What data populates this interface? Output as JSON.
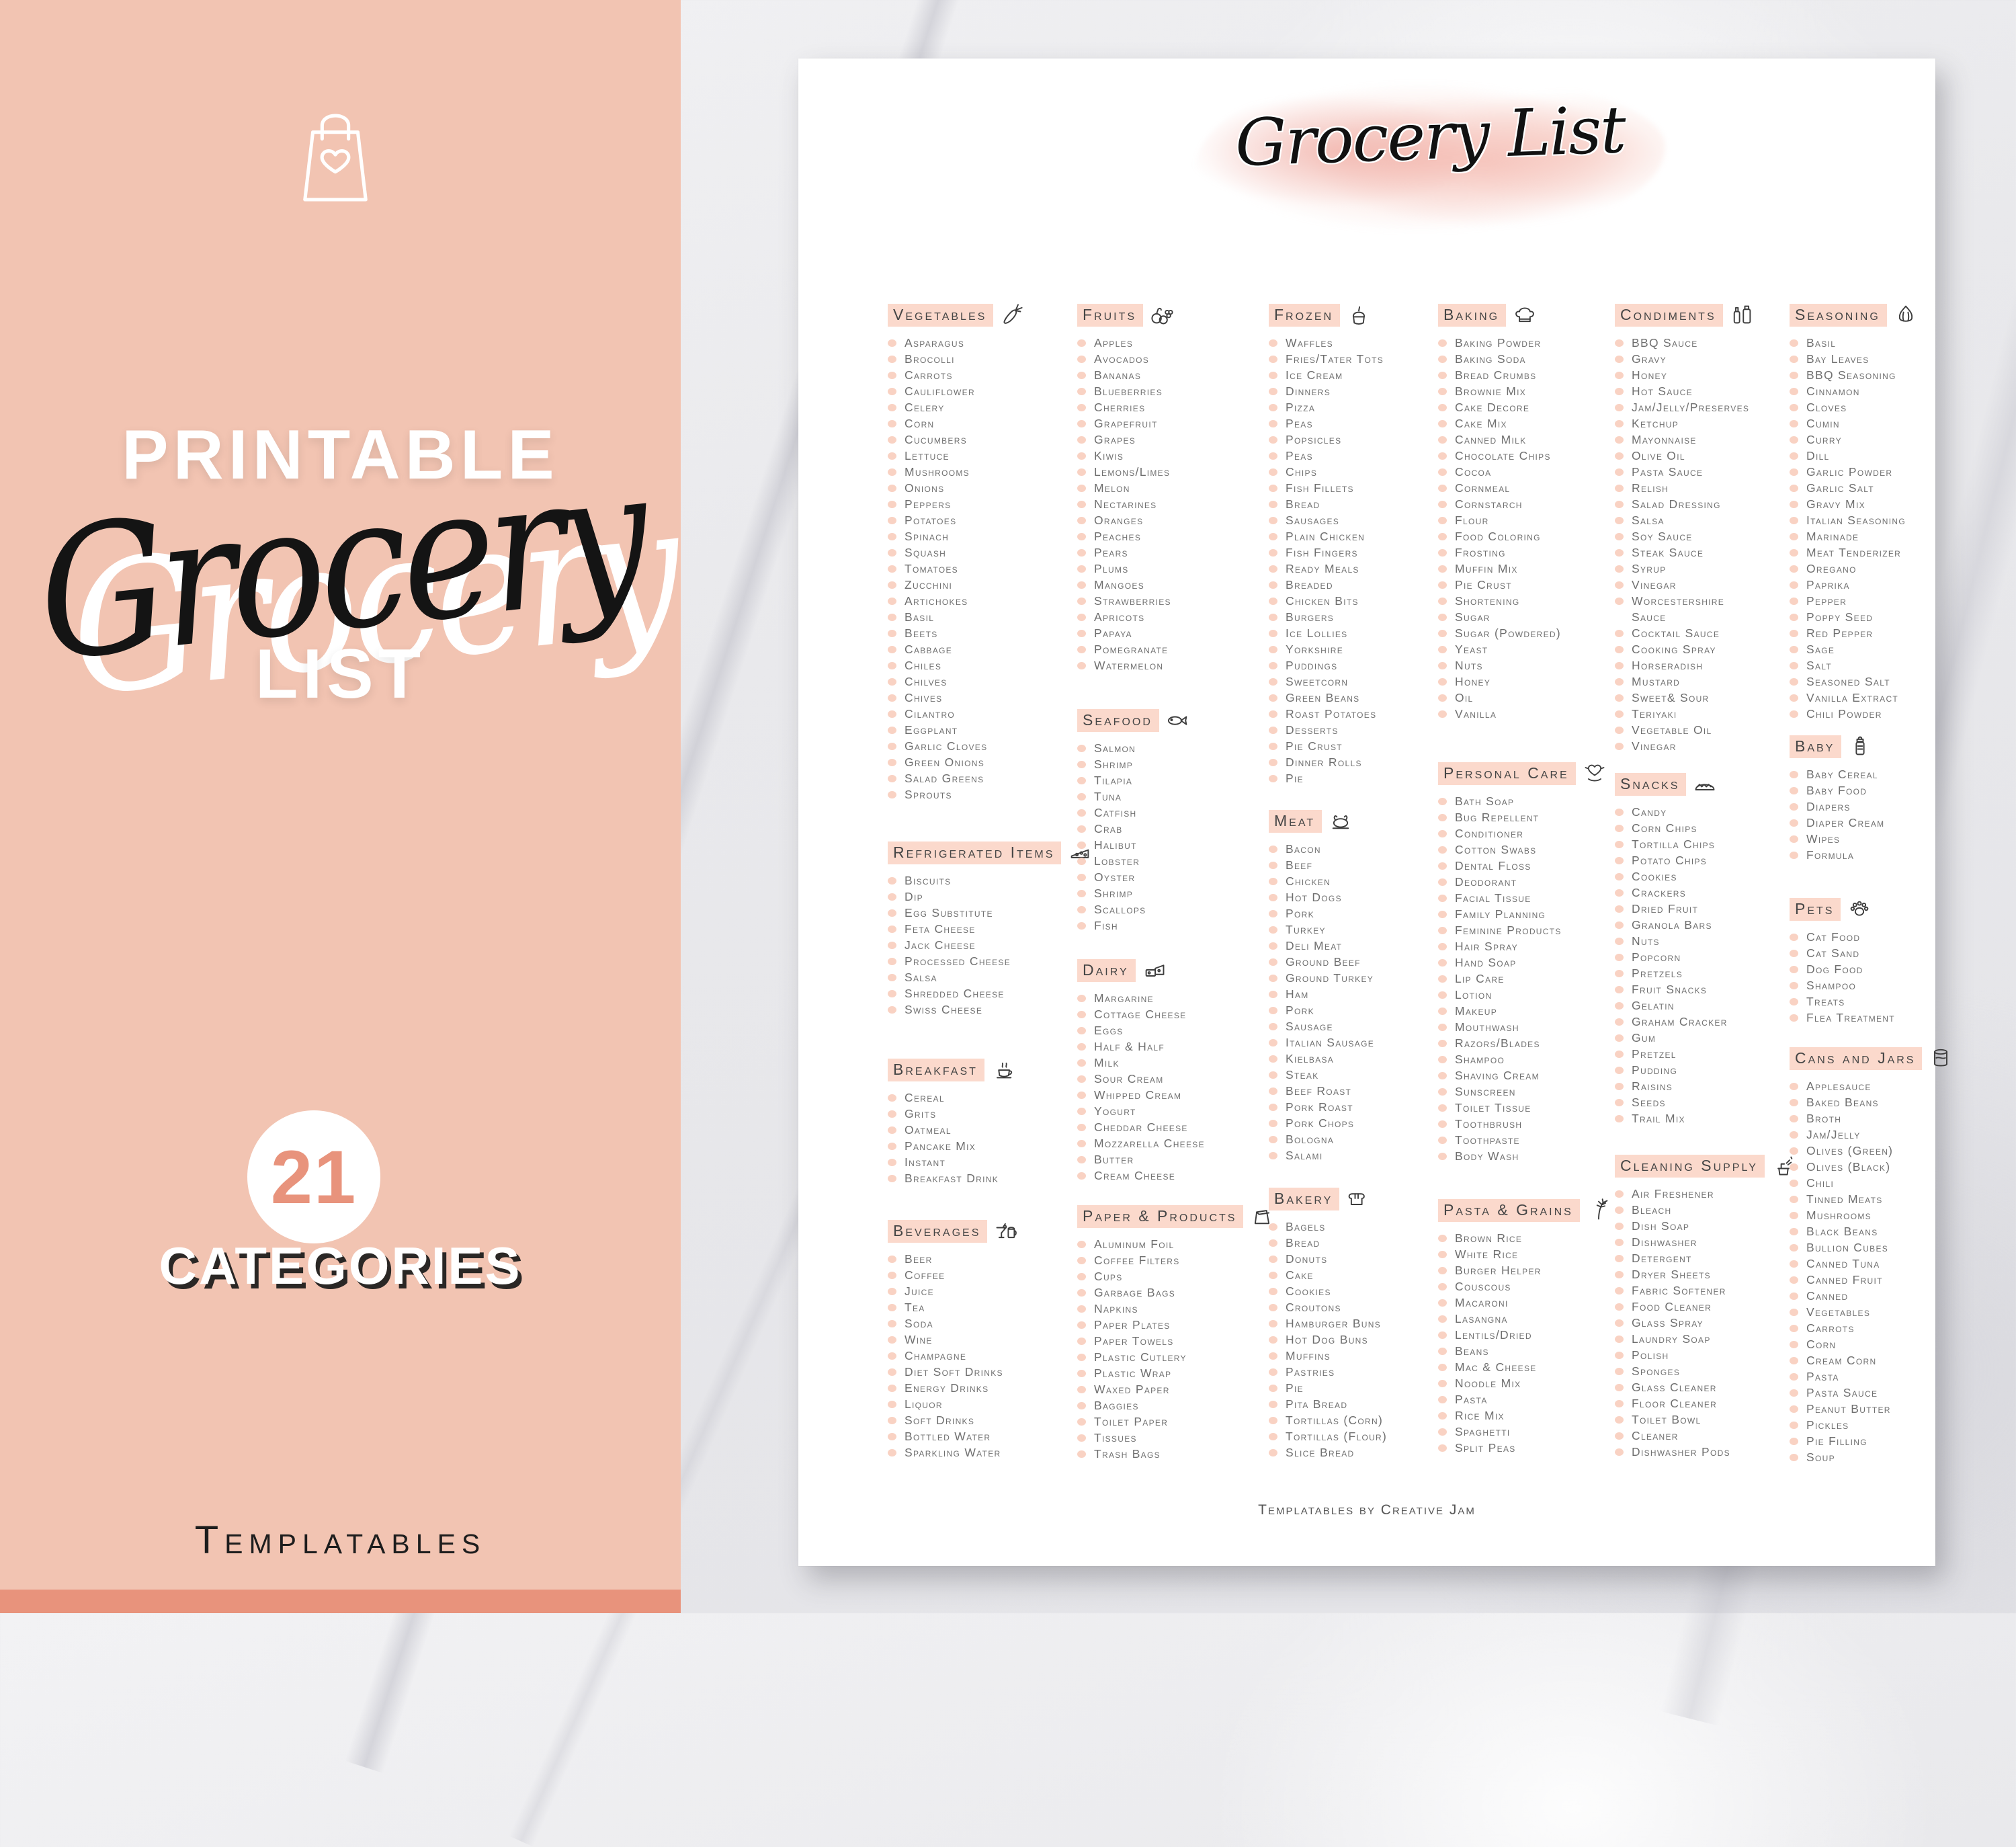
{
  "left_panel": {
    "bag_icon": "shopping-bag-heart-icon",
    "title_top": "PRINTABLE",
    "script_word": "Grocery",
    "title_bottom": "LIST",
    "badge": {
      "number": "21",
      "label": "CATEGORIES"
    },
    "brand": "Templatables"
  },
  "colors": {
    "panel_pink": "#f2c4b2",
    "accent_salmon": "#e8937c",
    "band_pink": "#fbd9cc",
    "dot_pink": "#f9d2c3",
    "header_text": "#454545",
    "item_text": "#6f6f6f"
  },
  "document": {
    "title": "Grocery List",
    "footer": "Templatables by Creative Jam",
    "columns": [
      [
        {
          "name": "Vegetables",
          "icon": "carrot-icon",
          "items": [
            "Asparagus",
            "Brocolli",
            "Carrots",
            "Cauliflower",
            "Celery",
            "Corn",
            "Cucumbers",
            "Lettuce",
            "Mushrooms",
            "Onions",
            "Peppers",
            "Potatoes",
            "Spinach",
            "Squash",
            "Tomatoes",
            "Zucchini",
            "Artichokes",
            "Basil",
            "Beets",
            "Cabbage",
            "Chiles",
            "Chilves",
            "Chives",
            "Cilantro",
            "Eggplant",
            "Garlic Cloves",
            "Green Onions",
            "Salad Greens",
            "Sprouts"
          ]
        },
        {
          "name": "Refrigerated Items",
          "icon": "cheese-icon",
          "items": [
            "Biscuits",
            "Dip",
            "Egg Substitute",
            "Feta Cheese",
            "Jack Cheese",
            "Processed Cheese",
            "Salsa",
            "Shredded Cheese",
            "Swiss Cheese"
          ]
        },
        {
          "name": "Breakfast",
          "icon": "coffee-cup-icon",
          "items": [
            "Cereal",
            "Grits",
            "Oatmeal",
            "Pancake Mix",
            "Instant",
            "Breakfast Drink"
          ]
        },
        {
          "name": "Beverages",
          "icon": "drinks-icon",
          "items": [
            "Beer",
            "Coffee",
            "Juice",
            "Tea",
            "Soda",
            "Wine",
            "Champagne",
            "Diet Soft Drinks",
            "Energy Drinks",
            "Liquor",
            "Soft Drinks",
            "Bottled Water",
            "Sparkling Water"
          ]
        }
      ],
      [
        {
          "name": "Fruits",
          "icon": "fruit-icon",
          "items": [
            "Apples",
            "Avocados",
            "Bananas",
            "Blueberries",
            "Cherries",
            "Grapefruit",
            "Grapes",
            "Kiwis",
            "Lemons/Limes",
            "Melon",
            "Nectarines",
            "Oranges",
            "Peaches",
            "Pears",
            "Plums",
            "Mangoes",
            "Strawberries",
            "Apricots",
            "Papaya",
            "Pomegranate",
            "Watermelon"
          ]
        },
        {
          "name": "Seafood",
          "icon": "fish-icon",
          "items": [
            "Salmon",
            "Shrimp",
            "Tilapia",
            "Tuna",
            "Catfish",
            "Crab",
            "Halibut",
            "Lobster",
            "Oyster",
            "Shrimp",
            "Scallops",
            "Fish"
          ]
        },
        {
          "name": "Dairy",
          "icon": "dairy-icon",
          "items": [
            "Margarine",
            "Cottage Cheese",
            "Eggs",
            "Half & Half",
            "Milk",
            "Sour Cream",
            "Whipped Cream",
            "Yogurt",
            "Cheddar Cheese",
            "Mozzarella Cheese",
            "Butter",
            "Cream Cheese"
          ]
        },
        {
          "name": "Paper & Products",
          "icon": "paper-bag-icon",
          "items": [
            "Aluminum Foil",
            "Coffee Filters",
            "Cups",
            "Garbage Bags",
            "Napkins",
            "Paper Plates",
            "Paper Towels",
            "Plastic Cutlery",
            "Plastic Wrap",
            "Waxed Paper",
            "Baggies",
            "Toilet Paper",
            "Tissues",
            "Trash Bags"
          ]
        }
      ],
      [
        {
          "name": "Frozen",
          "icon": "ice-cream-cup-icon",
          "items": [
            "Waffles",
            "Fries/Tater Tots",
            "Ice Cream",
            "Dinners",
            "Pizza",
            "Peas",
            "Popsicles",
            "Peas",
            "Chips",
            "Fish Fillets",
            "Bread",
            "Sausages",
            "Plain Chicken",
            "Fish Fingers",
            "Ready Meals",
            "Breaded",
            "Chicken Bits",
            "Burgers",
            "Ice Lollies",
            "Yorkshire",
            "Puddings",
            "Sweetcorn",
            "Green Beans",
            "Roast Potatoes",
            "Desserts",
            "Pie Crust",
            "Dinner Rolls",
            "Pie"
          ]
        },
        {
          "name": "Meat",
          "icon": "roast-turkey-icon",
          "items": [
            "Bacon",
            "Beef",
            "Chicken",
            "Hot Dogs",
            "Pork",
            "Turkey",
            "Deli Meat",
            "Ground Beef",
            "Ground Turkey",
            "Ham",
            "Pork",
            "Sausage",
            "Italian Sausage",
            "Kielbasa",
            "Steak",
            "Beef Roast",
            "Pork Roast",
            "Pork Chops",
            "Bologna",
            "Salami"
          ]
        },
        {
          "name": "Bakery",
          "icon": "bread-icon",
          "items": [
            "Bagels",
            "Bread",
            "Donuts",
            "Cake",
            "Cookies",
            "Croutons",
            "Hamburger Buns",
            "Hot Dog Buns",
            "Muffins",
            "Pastries",
            "Pie",
            "Pita Bread",
            "Tortillas (Corn)",
            "Tortillas (Flour)",
            "Slice Bread"
          ]
        }
      ],
      [
        {
          "name": "Baking",
          "icon": "chef-hat-icon",
          "items": [
            "Baking Powder",
            "Baking Soda",
            "Bread Crumbs",
            "Brownie Mix",
            "Cake Decore",
            "Cake Mix",
            "Canned Milk",
            "Chocolate Chips",
            "Cocoa",
            "Cornmeal",
            "Cornstarch",
            "Flour",
            "Food Coloring",
            "Frosting",
            "Muffin Mix",
            "Pie Crust",
            "Shortening",
            "Sugar",
            "Sugar (Powdered)",
            "Yeast",
            "Nuts",
            "Honey",
            "Oil",
            "Vanilla"
          ]
        },
        {
          "name": "Personal Care",
          "icon": "heart-hand-icon",
          "items": [
            "Bath Soap",
            "Bug Repellent",
            "Conditioner",
            "Cotton Swabs",
            "Dental Floss",
            "Deodorant",
            "Facial Tissue",
            "Family Planning",
            "Feminine Products",
            "Hair Spray",
            "Hand Soap",
            "Lip Care",
            "Lotion",
            "Makeup",
            "Mouthwash",
            "Razors/Blades",
            "Shampoo",
            "Shaving Cream",
            "Sunscreen",
            "Toilet Tissue",
            "Toothbrush",
            "Toothpaste",
            "Body Wash"
          ]
        },
        {
          "name": "Pasta & Grains",
          "icon": "wheat-icon",
          "items": [
            "Brown Rice",
            "White Rice",
            "Burger Helper",
            "Couscous",
            "Macaroni",
            "Lasangna",
            "Lentils/Dried",
            "Beans",
            "Mac & Cheese",
            "Noodle Mix",
            "Pasta",
            "Rice Mix",
            "Spaghetti",
            "Split Peas"
          ]
        }
      ],
      [
        {
          "name": "Condiments",
          "icon": "sauce-bottles-icon",
          "items": [
            "BBQ Sauce",
            "Gravy",
            "Honey",
            "Hot Sauce",
            "Jam/Jelly/Preserves",
            "Ketchup",
            "Mayonnaise",
            "Olive Oil",
            "Pasta Sauce",
            "Relish",
            "Salad Dressing",
            "Salsa",
            "Soy Sauce",
            "Steak Sauce",
            "Syrup",
            "Vinegar",
            "Worcestershire",
            {
              "text": "Sauce",
              "nodot": true
            },
            "Cocktail Sauce",
            "Cooking Spray",
            "Horseradish",
            "Mustard",
            "Sweet& Sour",
            "Teriyaki",
            "Vegetable Oil",
            "Vinegar"
          ]
        },
        {
          "name": "Snacks",
          "icon": "taco-icon",
          "items": [
            "Candy",
            "Corn Chips",
            "Tortilla Chips",
            "Potato Chips",
            "Cookies",
            "Crackers",
            "Dried Fruit",
            "Granola Bars",
            "Nuts",
            "Popcorn",
            "Pretzels",
            "Fruit Snacks",
            "Gelatin",
            "Graham Cracker",
            "Gum",
            "Pretzel",
            "Pudding",
            "Raisins",
            "Seeds",
            "Trail Mix"
          ]
        },
        {
          "name": "Cleaning Supply",
          "icon": "cleaning-bucket-icon",
          "items": [
            "Air Freshener",
            "Bleach",
            "Dish Soap",
            "Dishwasher",
            "Detergent",
            "Dryer Sheets",
            "Fabric Softener",
            "Food Cleaner",
            "Glass Spray",
            "Laundry Soap",
            "Polish",
            "Sponges",
            "Glass Cleaner",
            "Floor Cleaner",
            "Toilet Bowl",
            "Cleaner",
            "Dishwasher Pods"
          ]
        }
      ],
      [
        {
          "name": "Seasoning",
          "icon": "garlic-icon",
          "items": [
            "Basil",
            "Bay Leaves",
            "BBQ Seasoning",
            "Cinnamon",
            "Cloves",
            "Cumin",
            "Curry",
            "Dill",
            "Garlic Powder",
            "Garlic Salt",
            "Gravy Mix",
            "Italian Seasoning",
            "Marinade",
            "Meat Tenderizer",
            "Oregano",
            "Paprika",
            "Pepper",
            "Poppy Seed",
            "Red Pepper",
            "Sage",
            "Salt",
            "Seasoned Salt",
            "Vanilla Extract",
            "Chili Powder"
          ]
        },
        {
          "name": "Baby",
          "icon": "baby-bottle-icon",
          "items": [
            "Baby Cereal",
            "Baby Food",
            "Diapers",
            "Diaper Cream",
            "Wipes",
            "Formula"
          ]
        },
        {
          "name": "Pets",
          "icon": "paw-icon",
          "items": [
            "Cat Food",
            "Cat Sand",
            "Dog Food",
            "Shampoo",
            "Treats",
            "Flea Treatment"
          ]
        },
        {
          "name": "Cans and Jars",
          "icon": "can-icon",
          "items": [
            "Applesauce",
            "Baked Beans",
            "Broth",
            "Jam/Jelly",
            "Olives (Green)",
            "Olives (Black)",
            "Chili",
            "Tinned Meats",
            "Mushrooms",
            "Black Beans",
            "Bullion Cubes",
            "Canned Tuna",
            "Canned Fruit",
            "Canned",
            "Vegetables",
            "Carrots",
            "Corn",
            "Cream Corn",
            "Pasta",
            "Pasta Sauce",
            "Peanut Butter",
            "Pickles",
            "Pie Filling",
            "Soup"
          ]
        }
      ]
    ]
  }
}
